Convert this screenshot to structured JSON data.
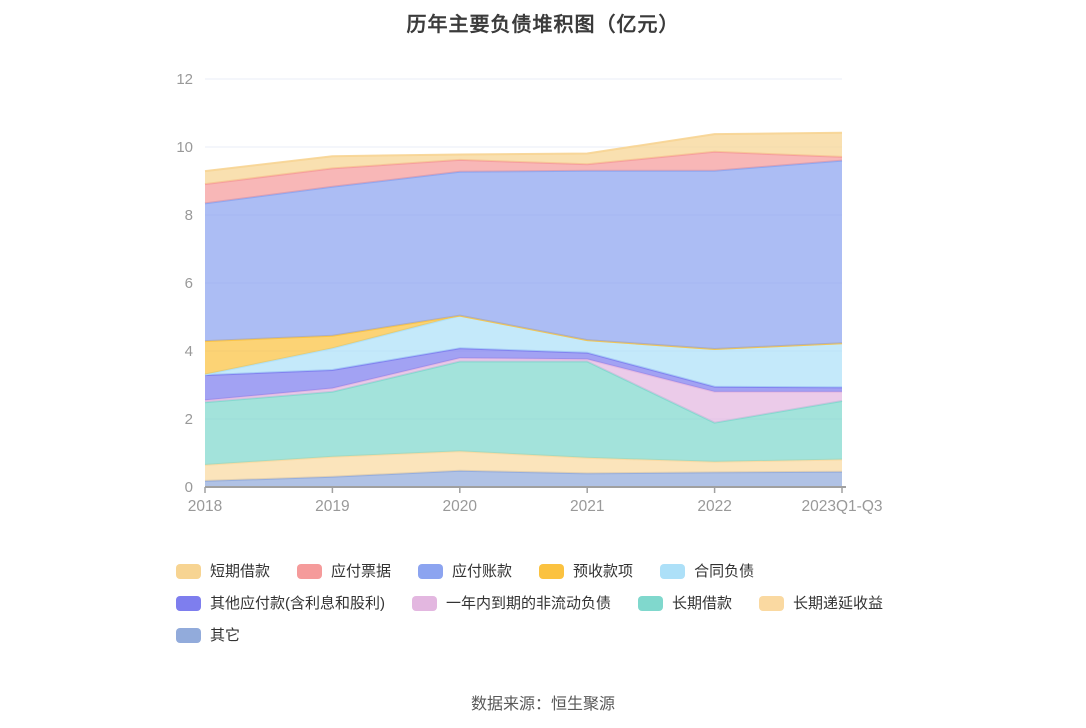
{
  "header": {
    "title": "历年主要负债堆积图（亿元）"
  },
  "footer": {
    "source_text": "数据来源：恒生聚源"
  },
  "axis_style": {
    "label_color": "#999999",
    "grid_color": "#e9eef7",
    "axis_line_color": "#a0a0a0"
  },
  "chart_data": {
    "type": "area",
    "stacked": true,
    "title": "历年主要负债堆积图（亿元）",
    "xlabel": "",
    "ylabel": "",
    "ylim": [
      0,
      12
    ],
    "y_ticks": [
      0,
      2,
      4,
      6,
      8,
      10,
      12
    ],
    "grid": true,
    "legend_position": "bottom",
    "stack_note": "series listed in legend order; last series is bottom band of the stack",
    "categories": [
      "2018",
      "2019",
      "2020",
      "2021",
      "2022",
      "2023Q1-Q3"
    ],
    "series": [
      {
        "name": "短期借款",
        "color": "#f7d492",
        "values": [
          0.38,
          0.36,
          0.16,
          0.32,
          0.52,
          0.71
        ]
      },
      {
        "name": "应付票据",
        "color": "#f59b9b",
        "values": [
          0.57,
          0.54,
          0.35,
          0.19,
          0.56,
          0.11
        ]
      },
      {
        "name": "应付账款",
        "color": "#8ca4f0",
        "values": [
          4.05,
          4.38,
          4.23,
          4.98,
          5.24,
          5.37
        ]
      },
      {
        "name": "预收款项",
        "color": "#fbc240",
        "values": [
          0.98,
          0.37,
          0.0,
          0.0,
          0.0,
          0.0
        ]
      },
      {
        "name": "合同负债",
        "color": "#ade0f8",
        "values": [
          0.02,
          0.64,
          0.96,
          0.37,
          1.11,
          1.3
        ]
      },
      {
        "name": "其他应付款(含利息和股利)",
        "color": "#7e7eee",
        "values": [
          0.74,
          0.54,
          0.29,
          0.19,
          0.15,
          0.13
        ]
      },
      {
        "name": "一年内到期的非流动负债",
        "color": "#e3b7e0",
        "values": [
          0.06,
          0.1,
          0.1,
          0.07,
          0.91,
          0.27
        ]
      },
      {
        "name": "长期借款",
        "color": "#80d8cd",
        "values": [
          1.84,
          1.91,
          2.64,
          2.83,
          1.15,
          1.72
        ]
      },
      {
        "name": "长期递延收益",
        "color": "#fad9a1",
        "values": [
          0.47,
          0.59,
          0.57,
          0.46,
          0.31,
          0.36
        ]
      },
      {
        "name": "其它",
        "color": "#92abdb",
        "values": [
          0.18,
          0.3,
          0.48,
          0.4,
          0.43,
          0.45
        ]
      }
    ]
  }
}
